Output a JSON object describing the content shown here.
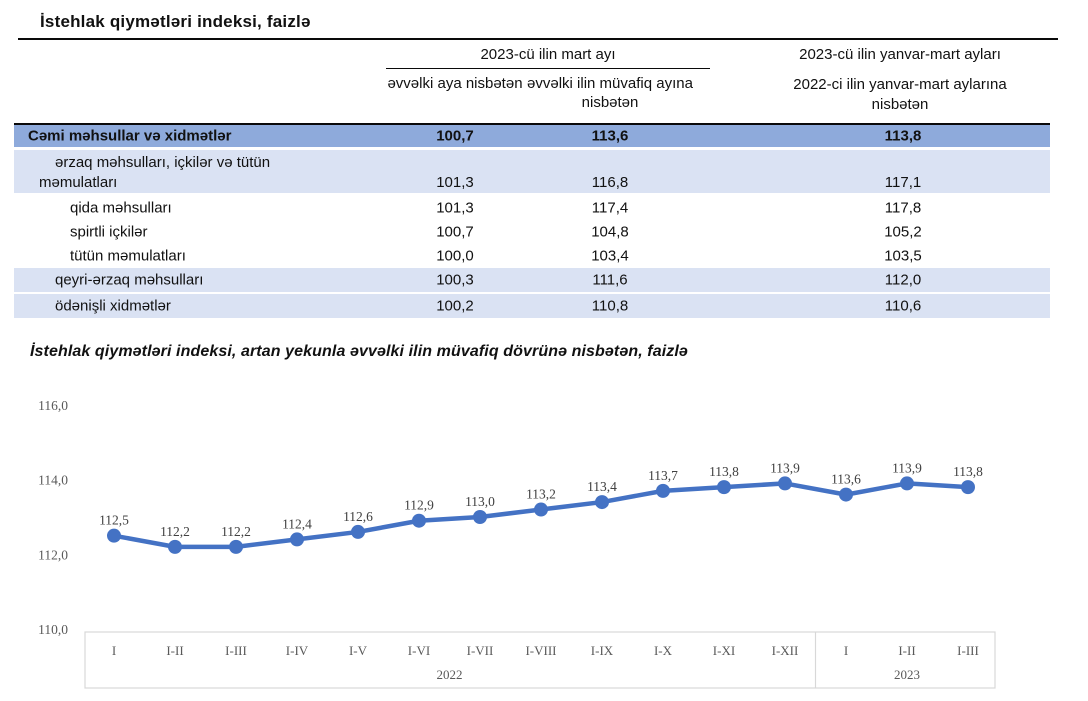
{
  "page": {
    "title": "İstehlak qiymətləri indeksi, faizlə"
  },
  "table": {
    "header": {
      "group_march": "2023-cü ilin mart ayı",
      "col_prev_month": "əvvəlki aya nisbətən",
      "col_prev_year_month": "əvvəlki ilin müvafiq ayına nisbətən",
      "col_cumulative_line1": "2023-cü ilin yanvar-mart ayları",
      "col_cumulative_line2": "2022-ci ilin yanvar-mart aylarına",
      "col_cumulative_line3": "nisbətən"
    },
    "rows": [
      {
        "label": "Cəmi məhsullar və xidmətlər",
        "v1": "100,7",
        "v2": "113,6",
        "v3": "113,8"
      },
      {
        "label": "ərzaq məhsulları, içkilər və tütün",
        "label2": "məmulatları",
        "v1": "101,3",
        "v2": "116,8",
        "v3": "117,1"
      },
      {
        "label": "qida məhsulları",
        "v1": "101,3",
        "v2": "117,4",
        "v3": "117,8"
      },
      {
        "label": "spirtli içkilər",
        "v1": "100,7",
        "v2": "104,8",
        "v3": "105,2"
      },
      {
        "label": "tütün məmulatları",
        "v1": "100,0",
        "v2": "103,4",
        "v3": "103,5"
      },
      {
        "label": "qeyri-ərzaq məhsulları",
        "v1": "100,3",
        "v2": "111,6",
        "v3": "112,0"
      },
      {
        "label": "ödənişli xidmətlər",
        "v1": "100,2",
        "v2": "110,8",
        "v3": "110,6"
      }
    ]
  },
  "chart_data": {
    "type": "line",
    "title": "İstehlak qiymətləri indeksi, artan yekunla əvvəlki ilin müvafiq dövrünə nisbətən, faizlə",
    "categories": [
      "I",
      "I-II",
      "I-III",
      "I-IV",
      "I-V",
      "I-VI",
      "I-VII",
      "I-VIII",
      "I-IX",
      "I-X",
      "I-XI",
      "I-XII",
      "I",
      "I-II",
      "I-III"
    ],
    "values": [
      112.5,
      112.2,
      112.2,
      112.4,
      112.6,
      112.9,
      113.0,
      113.2,
      113.4,
      113.7,
      113.8,
      113.9,
      113.6,
      113.9,
      113.8
    ],
    "value_labels": [
      "112,5",
      "112,2",
      "112,2",
      "112,4",
      "112,6",
      "112,9",
      "113,0",
      "113,2",
      "113,4",
      "113,7",
      "113,8",
      "113,9",
      "113,6",
      "113,9",
      "113,8"
    ],
    "year_groups": [
      {
        "label": "2022",
        "from": 0,
        "to": 11
      },
      {
        "label": "2023",
        "from": 12,
        "to": 14
      }
    ],
    "yticks": [
      {
        "label": "116,0",
        "value": 116
      },
      {
        "label": "114,0",
        "value": 114
      },
      {
        "label": "112,0",
        "value": 112
      },
      {
        "label": "110,0",
        "value": 110
      }
    ],
    "ylim": [
      110,
      116
    ],
    "grid": false,
    "legend": "none",
    "xlabel": "",
    "ylabel": ""
  },
  "colors": {
    "line": "#4472C4",
    "row_highlight": "#8EAADB",
    "row_alt": "#DAE2F3",
    "axis_text": "#595959",
    "data_label_text": "#404040",
    "axis_box_border": "#d8d8d8",
    "rule": "#0a0a0a"
  }
}
